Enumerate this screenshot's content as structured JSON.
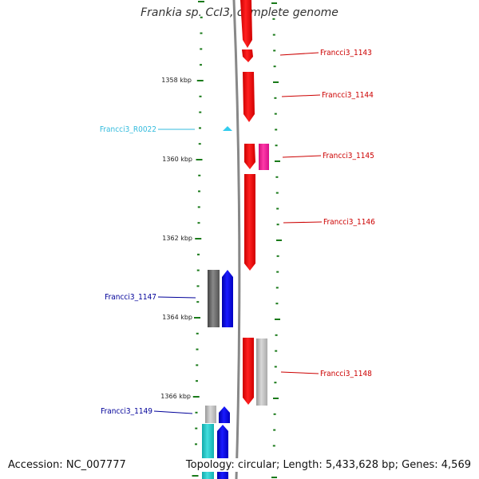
{
  "title": "Frankia sp. CcI3, complete genome",
  "footer": {
    "accession": "Accession: NC_007777",
    "summary": "Topology: circular; Length: 5,433,628 bp; Genes: 4,569"
  },
  "colors": {
    "forward_gene": "#ff0000",
    "reverse_gene": "#0000ff",
    "rna": "#33ccee",
    "pseudo_gray": "#bbbbbb",
    "dark_gray": "#666666",
    "magenta": "#ff2aa0",
    "cyan": "#22cccc",
    "tick_green": "#1a7a1a",
    "backbone": "#888888"
  },
  "scale_labels": [
    "1358 kbp",
    "1360 kbp",
    "1362 kbp",
    "1364 kbp",
    "1366 kbp"
  ],
  "gene_labels": [
    {
      "text": "Francci3_1143",
      "side": "right",
      "color": "#cc0000"
    },
    {
      "text": "Francci3_1144",
      "side": "right",
      "color": "#cc0000"
    },
    {
      "text": "Francci3_R0022",
      "side": "left",
      "color": "#33bbdd"
    },
    {
      "text": "Francci3_1145",
      "side": "right",
      "color": "#cc0000"
    },
    {
      "text": "Francci3_1146",
      "side": "right",
      "color": "#cc0000"
    },
    {
      "text": "Francci3_1147",
      "side": "left",
      "color": "#000099"
    },
    {
      "text": "Francci3_1148",
      "side": "right",
      "color": "#cc0000"
    },
    {
      "text": "Francci3_1149",
      "side": "left",
      "color": "#000099"
    }
  ]
}
